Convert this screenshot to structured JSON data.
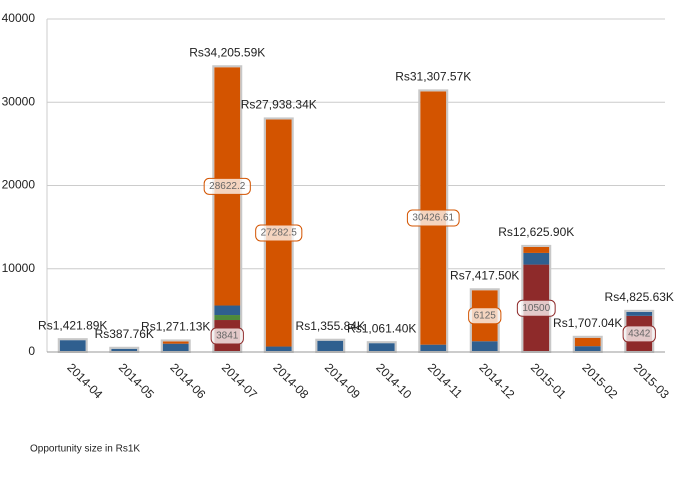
{
  "chart_data": {
    "type": "stacked-bar",
    "note": "Opportunity size in Rs1K",
    "categories": [
      "2014-04",
      "2014-05",
      "2014-06",
      "2014-07",
      "2014-08",
      "2014-09",
      "2014-10",
      "2014-11",
      "2014-12",
      "2015-01",
      "2015-02",
      "2015-03"
    ],
    "series": [
      {
        "color": "#8e2a2a",
        "values": [
          null,
          null,
          null,
          3841,
          null,
          null,
          null,
          null,
          null,
          10500,
          null,
          4342
        ],
        "value_labels": [
          null,
          null,
          null,
          "3841",
          null,
          null,
          null,
          null,
          null,
          "10500",
          null,
          "4342"
        ]
      },
      {
        "color": "#4f8a3a",
        "values": [
          null,
          null,
          null,
          600,
          null,
          null,
          null,
          null,
          null,
          null,
          null,
          null
        ]
      },
      {
        "color": "#2f5f8f",
        "values": [
          1421.89,
          387.76,
          1000,
          1142.39,
          655.84,
          1355.84,
          1061.4,
          880.96,
          1292.5,
          1400,
          700,
          483.63
        ]
      },
      {
        "color": "#d35400",
        "values": [
          null,
          null,
          271.13,
          28622.2,
          27282.5,
          null,
          null,
          30426.61,
          6125,
          725.9,
          1007.04,
          null
        ],
        "value_labels": [
          null,
          null,
          null,
          "28622.2",
          "27282.5",
          null,
          null,
          "30426.61",
          "6125",
          null,
          null,
          null
        ]
      }
    ],
    "totals": {
      "values": [
        1421.89,
        387.76,
        1271.13,
        34205.59,
        27938.34,
        1355.84,
        1061.4,
        31307.57,
        7417.5,
        12625.9,
        1707.04,
        4825.63
      ],
      "value_labels": [
        "Rs1,421.89K",
        "Rs387.76K",
        "Rs1,271.13K",
        "Rs34,205.59K",
        "Rs27,938.34K",
        "Rs1,355.84K",
        "Rs1,061.40K",
        "Rs31,307.57K",
        "Rs7,417.50K",
        "Rs12,625.90K",
        "Rs1,707.04K",
        "Rs4,825.63K"
      ]
    },
    "ylim": [
      0,
      40000
    ],
    "yticks": [
      0,
      10000,
      20000,
      30000,
      40000
    ],
    "grid": true
  }
}
